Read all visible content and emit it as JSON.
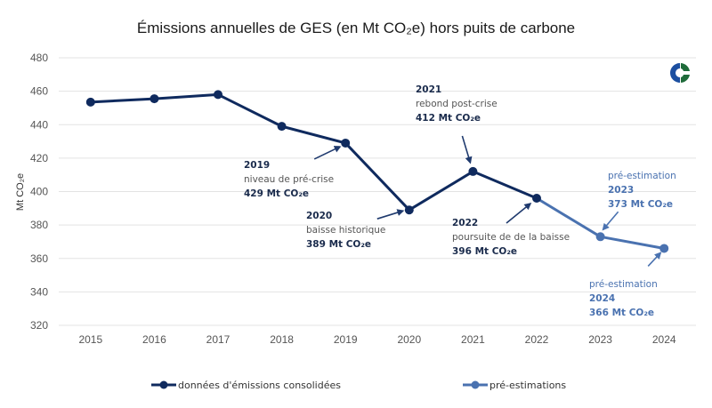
{
  "chart_data": {
    "type": "line",
    "title": "Émissions annuelles de GES (en Mt CO₂e) hors puits de carbone",
    "xlabel": "",
    "ylabel": "Mt CO₂e",
    "ylim": [
      320,
      480
    ],
    "yticks": [
      320,
      340,
      360,
      380,
      400,
      420,
      440,
      460,
      480
    ],
    "grid": true,
    "legend_position": "bottom",
    "categories": [
      "2015",
      "2016",
      "2017",
      "2018",
      "2019",
      "2020",
      "2021",
      "2022",
      "2023",
      "2024"
    ],
    "series": [
      {
        "name": "données d'émissions consolidées",
        "color": "#0f2a5e",
        "x": [
          "2015",
          "2016",
          "2017",
          "2018",
          "2019",
          "2020",
          "2021",
          "2022"
        ],
        "values": [
          453.5,
          455.5,
          458,
          439,
          429,
          389,
          412,
          396
        ]
      },
      {
        "name": "pré-estimations",
        "color": "#4a72b0",
        "x": [
          "2022",
          "2023",
          "2024"
        ],
        "values": [
          396,
          373,
          366
        ]
      }
    ],
    "annotations": [
      {
        "year": "2019",
        "label": "niveau de pré-crise",
        "value_text": "429 Mt CO₂e",
        "color": "#1f3a6e",
        "style": "consolidated"
      },
      {
        "year": "2020",
        "label": "baisse historique",
        "value_text": "389 Mt CO₂e",
        "color": "#1f3a6e",
        "style": "consolidated"
      },
      {
        "year": "2021",
        "label": "rebond post-crise",
        "value_text": "412 Mt CO₂e",
        "color": "#1f3a6e",
        "style": "consolidated"
      },
      {
        "year": "2022",
        "label": "poursuite de de la baisse",
        "value_text": "396 Mt CO₂e",
        "color": "#1f3a6e",
        "style": "consolidated"
      },
      {
        "year": "2023",
        "label": "pré-estimation",
        "value_text": "373 Mt CO₂e",
        "color": "#4a72b0",
        "style": "estimate"
      },
      {
        "year": "2024",
        "label": "pré-estimation",
        "value_text": "366 Mt CO₂e",
        "color": "#4a72b0",
        "style": "estimate"
      }
    ]
  },
  "logo": {
    "name": "organization-logo",
    "colors": [
      "#1c4fa0",
      "#1f6b3a"
    ]
  }
}
